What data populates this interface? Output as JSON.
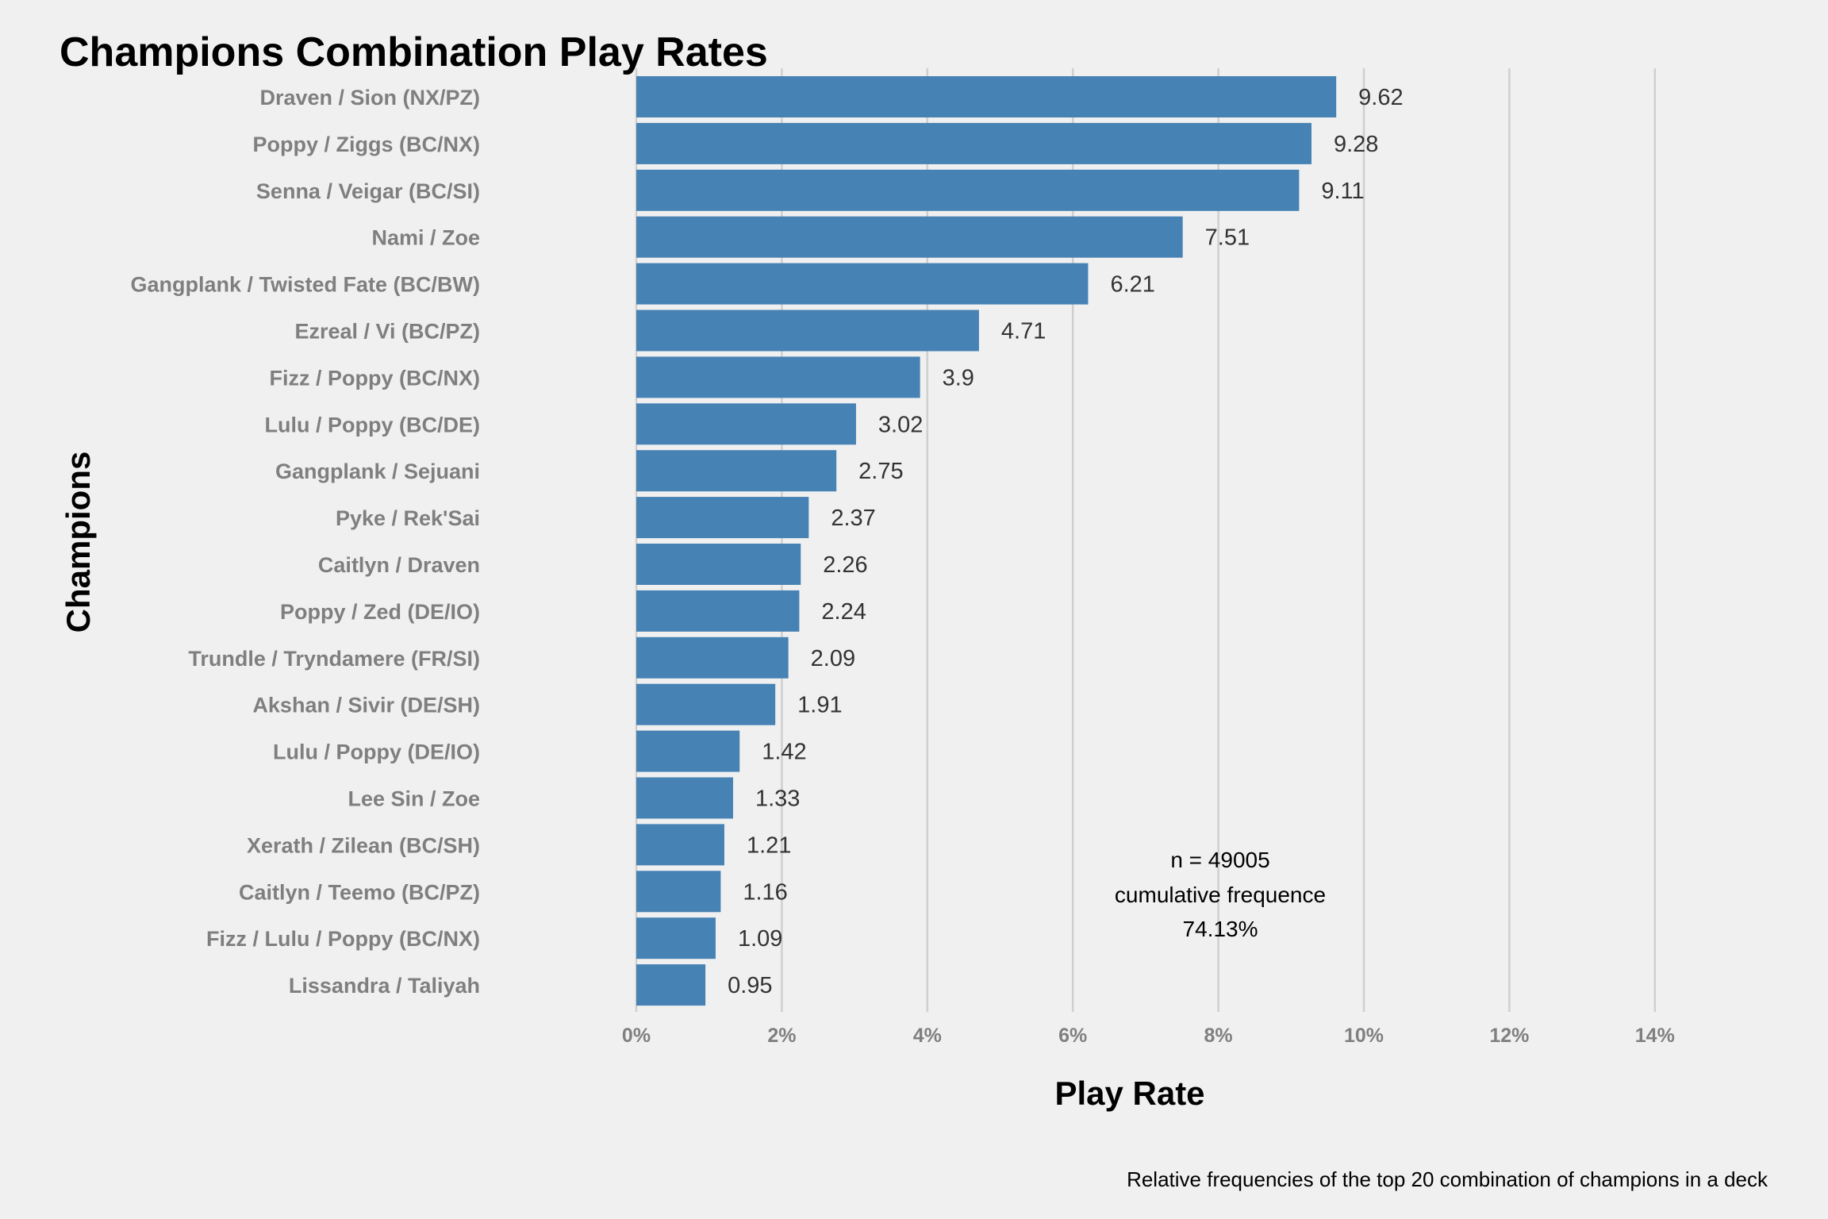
{
  "chart_data": {
    "type": "bar",
    "orientation": "horizontal",
    "title": "Champions Combination Play Rates",
    "xlabel": "Play Rate",
    "ylabel": "Champions",
    "caption": "Relative frequencies of the top 20 combination of champions in a deck",
    "annotation": [
      "n = 49005",
      "cumulative frequence",
      "74.13%"
    ],
    "bar_color": "#4682b4",
    "xlim": [
      0,
      14
    ],
    "xticks": [
      0,
      2,
      4,
      6,
      8,
      10,
      12,
      14
    ],
    "xtick_labels": [
      "0%",
      "2%",
      "4%",
      "6%",
      "8%",
      "10%",
      "12%",
      "14%"
    ],
    "grid": "vertical major",
    "categories": [
      "Draven / Sion (NX/PZ)",
      "Poppy / Ziggs (BC/NX)",
      "Senna / Veigar (BC/SI)",
      "Nami / Zoe",
      "Gangplank / Twisted Fate (BC/BW)",
      "Ezreal / Vi (BC/PZ)",
      "Fizz / Poppy (BC/NX)",
      "Lulu / Poppy (BC/DE)",
      "Gangplank / Sejuani",
      "Pyke / Rek'Sai",
      "Caitlyn / Draven",
      "Poppy / Zed (DE/IO)",
      "Trundle / Tryndamere (FR/SI)",
      "Akshan / Sivir (DE/SH)",
      "Lulu / Poppy (DE/IO)",
      "Lee Sin / Zoe",
      "Xerath / Zilean (BC/SH)",
      "Caitlyn / Teemo (BC/PZ)",
      "Fizz / Lulu / Poppy (BC/NX)",
      "Lissandra / Taliyah"
    ],
    "values": [
      9.62,
      9.28,
      9.11,
      7.51,
      6.21,
      4.71,
      3.9,
      3.02,
      2.75,
      2.37,
      2.26,
      2.24,
      2.09,
      1.91,
      1.42,
      1.33,
      1.21,
      1.16,
      1.09,
      0.95
    ],
    "value_labels": [
      "9.62",
      "9.28",
      "9.11",
      "7.51",
      "6.21",
      "4.71",
      "3.9",
      "3.02",
      "2.75",
      "2.37",
      "2.26",
      "2.24",
      "2.09",
      "1.91",
      "1.42",
      "1.33",
      "1.21",
      "1.16",
      "1.09",
      "0.95"
    ]
  }
}
